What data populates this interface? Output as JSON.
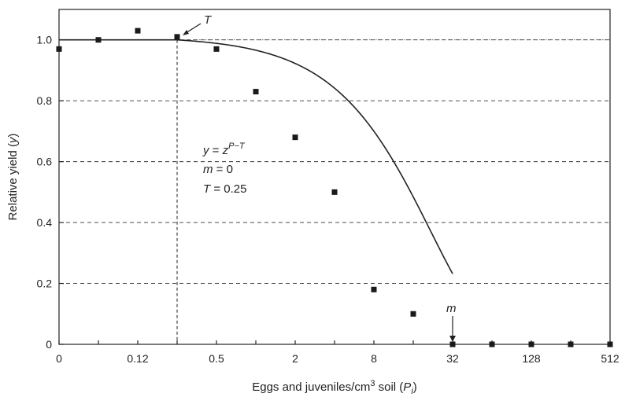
{
  "chart_data": {
    "type": "scatter",
    "x_scale": "log2",
    "x_tick_labels": [
      "0",
      "0.12",
      "0.5",
      "2",
      "8",
      "32",
      "128",
      "512"
    ],
    "x_tick_values": [
      0.03125,
      0.125,
      0.5,
      2,
      8,
      32,
      128,
      512
    ],
    "y_ticks": [
      0,
      0.2,
      0.4,
      0.6,
      0.8,
      1.0
    ],
    "y_tick_labels": [
      "0",
      "0.2",
      "0.4",
      "0.6",
      "0.8",
      "1.0"
    ],
    "ylim": [
      0,
      1.1
    ],
    "xlabel_parts": {
      "main": "Eggs and juveniles/cm",
      "sup": "3",
      "mid": " soil (",
      "var": "P",
      "sub": "i",
      "end": ")"
    },
    "ylabel_parts": {
      "main": "Relative yield (",
      "var": "y",
      "end": ")"
    },
    "grid": "horizontal dashed",
    "points": [
      {
        "x": 0.03125,
        "y": 0.97
      },
      {
        "x": 0.0625,
        "y": 1.0
      },
      {
        "x": 0.125,
        "y": 1.03
      },
      {
        "x": 0.25,
        "y": 1.01
      },
      {
        "x": 0.5,
        "y": 0.97
      },
      {
        "x": 1,
        "y": 0.83
      },
      {
        "x": 2,
        "y": 0.68
      },
      {
        "x": 4,
        "y": 0.5
      },
      {
        "x": 8,
        "y": 0.18
      },
      {
        "x": 16,
        "y": 0.1
      },
      {
        "x": 32,
        "y": 0
      },
      {
        "x": 64,
        "y": 0
      },
      {
        "x": 128,
        "y": 0
      },
      {
        "x": 256,
        "y": 0
      },
      {
        "x": 512,
        "y": 0
      }
    ],
    "curve": {
      "T": 0.25,
      "m": 0,
      "z": 0.955
    },
    "threshold_x": 0.25,
    "annotations": {
      "T_label": "T",
      "m_label": "m",
      "equation": {
        "y": "y",
        "eq": " = ",
        "z": "z",
        "exp": "P−T"
      },
      "m_line": {
        "var": "m",
        "rest": " = 0"
      },
      "T_line": {
        "var": "T",
        "rest": " = 0.25"
      }
    }
  }
}
